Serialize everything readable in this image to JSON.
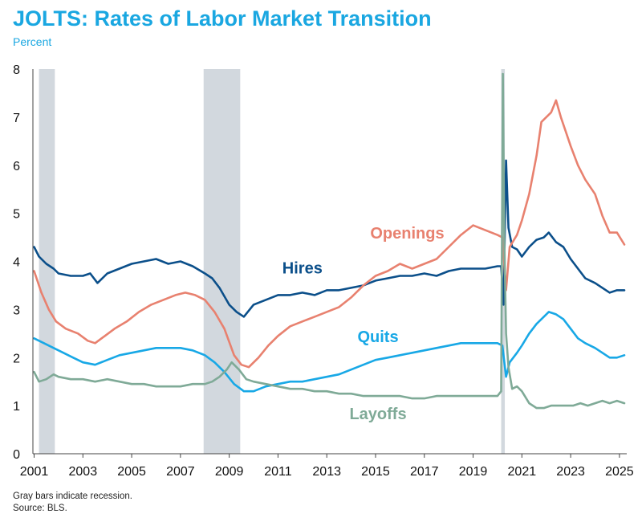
{
  "page": {
    "title": "JOLTS: Rates of Labor Market Transition",
    "subtitle": "Percent",
    "note": "Gray bars indicate recession.",
    "source": "Source: BLS."
  },
  "chart_data": {
    "type": "line",
    "title": "JOLTS: Rates of Labor Market Transition",
    "ylabel": "Percent",
    "xlim": [
      2000.95,
      2025.3
    ],
    "ylim": [
      0,
      8
    ],
    "yticks": [
      0,
      1,
      2,
      3,
      4,
      5,
      6,
      7,
      8
    ],
    "xticks": [
      2001,
      2003,
      2005,
      2007,
      2009,
      2011,
      2013,
      2015,
      2017,
      2019,
      2021,
      2023,
      2025
    ],
    "recessions": [
      [
        2001.2,
        2001.85
      ],
      [
        2007.95,
        2009.45
      ],
      [
        2020.15,
        2020.3
      ]
    ],
    "series": [
      {
        "name": "Hires",
        "color": "#0B4F8A",
        "label_year": 2012.0,
        "label_value": 3.75,
        "x": [
          2001.0,
          2001.2,
          2001.5,
          2001.8,
          2002.0,
          2002.5,
          2003.0,
          2003.3,
          2003.6,
          2004.0,
          2004.5,
          2005.0,
          2005.5,
          2006.0,
          2006.5,
          2007.0,
          2007.5,
          2008.0,
          2008.3,
          2008.6,
          2009.0,
          2009.3,
          2009.6,
          2010.0,
          2010.5,
          2011.0,
          2011.5,
          2012.0,
          2012.5,
          2013.0,
          2013.5,
          2014.0,
          2014.5,
          2015.0,
          2015.5,
          2016.0,
          2016.5,
          2017.0,
          2017.5,
          2018.0,
          2018.5,
          2019.0,
          2019.5,
          2020.0,
          2020.15,
          2020.25,
          2020.35,
          2020.45,
          2020.6,
          2020.8,
          2021.0,
          2021.3,
          2021.6,
          2021.9,
          2022.1,
          2022.4,
          2022.7,
          2023.0,
          2023.3,
          2023.6,
          2024.0,
          2024.3,
          2024.6,
          2024.9,
          2025.2
        ],
        "values": [
          4.3,
          4.1,
          3.95,
          3.85,
          3.75,
          3.7,
          3.7,
          3.75,
          3.55,
          3.75,
          3.85,
          3.95,
          4.0,
          4.05,
          3.95,
          4.0,
          3.9,
          3.75,
          3.65,
          3.45,
          3.1,
          2.95,
          2.85,
          3.1,
          3.2,
          3.3,
          3.3,
          3.35,
          3.3,
          3.4,
          3.4,
          3.45,
          3.5,
          3.6,
          3.65,
          3.7,
          3.7,
          3.75,
          3.7,
          3.8,
          3.85,
          3.85,
          3.85,
          3.9,
          3.9,
          3.1,
          6.1,
          4.7,
          4.3,
          4.25,
          4.1,
          4.3,
          4.45,
          4.5,
          4.6,
          4.4,
          4.3,
          4.05,
          3.85,
          3.65,
          3.55,
          3.45,
          3.35,
          3.4,
          3.4
        ]
      },
      {
        "name": "Openings",
        "color": "#E8816F",
        "label_year": 2016.3,
        "label_value": 4.48,
        "x": [
          2001.0,
          2001.3,
          2001.6,
          2001.9,
          2002.3,
          2002.8,
          2003.2,
          2003.5,
          2003.9,
          2004.3,
          2004.8,
          2005.3,
          2005.8,
          2006.3,
          2006.8,
          2007.2,
          2007.6,
          2008.0,
          2008.4,
          2008.8,
          2009.2,
          2009.5,
          2009.8,
          2010.2,
          2010.6,
          2011.0,
          2011.5,
          2012.0,
          2012.5,
          2013.0,
          2013.5,
          2014.0,
          2014.5,
          2015.0,
          2015.5,
          2016.0,
          2016.5,
          2017.0,
          2017.5,
          2018.0,
          2018.5,
          2019.0,
          2019.5,
          2020.0,
          2020.2,
          2020.35,
          2020.5,
          2020.8,
          2021.0,
          2021.3,
          2021.6,
          2021.8,
          2022.0,
          2022.2,
          2022.4,
          2022.6,
          2022.8,
          2023.0,
          2023.3,
          2023.6,
          2024.0,
          2024.3,
          2024.6,
          2024.9,
          2025.2
        ],
        "values": [
          3.8,
          3.35,
          3.0,
          2.75,
          2.6,
          2.5,
          2.35,
          2.3,
          2.45,
          2.6,
          2.75,
          2.95,
          3.1,
          3.2,
          3.3,
          3.35,
          3.3,
          3.2,
          2.95,
          2.6,
          2.05,
          1.85,
          1.8,
          2.0,
          2.25,
          2.45,
          2.65,
          2.75,
          2.85,
          2.95,
          3.05,
          3.25,
          3.5,
          3.7,
          3.8,
          3.95,
          3.85,
          3.95,
          4.05,
          4.3,
          4.55,
          4.75,
          4.65,
          4.55,
          4.5,
          3.4,
          4.3,
          4.55,
          4.85,
          5.4,
          6.2,
          6.9,
          7.0,
          7.1,
          7.35,
          7.0,
          6.7,
          6.4,
          6.0,
          5.7,
          5.4,
          4.95,
          4.6,
          4.6,
          4.35
        ]
      },
      {
        "name": "Quits",
        "color": "#18A8E6",
        "label_year": 2015.1,
        "label_value": 2.32,
        "x": [
          2001.0,
          2001.4,
          2001.8,
          2002.2,
          2002.6,
          2003.0,
          2003.5,
          2004.0,
          2004.5,
          2005.0,
          2005.5,
          2006.0,
          2006.5,
          2007.0,
          2007.5,
          2008.0,
          2008.4,
          2008.8,
          2009.2,
          2009.6,
          2010.0,
          2010.5,
          2011.0,
          2011.5,
          2012.0,
          2012.5,
          2013.0,
          2013.5,
          2014.0,
          2014.5,
          2015.0,
          2015.5,
          2016.0,
          2016.5,
          2017.0,
          2017.5,
          2018.0,
          2018.5,
          2019.0,
          2019.5,
          2020.0,
          2020.2,
          2020.35,
          2020.5,
          2020.8,
          2021.0,
          2021.3,
          2021.6,
          2021.9,
          2022.1,
          2022.4,
          2022.7,
          2023.0,
          2023.3,
          2023.6,
          2024.0,
          2024.3,
          2024.6,
          2024.9,
          2025.2
        ],
        "values": [
          2.4,
          2.3,
          2.2,
          2.1,
          2.0,
          1.9,
          1.85,
          1.95,
          2.05,
          2.1,
          2.15,
          2.2,
          2.2,
          2.2,
          2.15,
          2.05,
          1.9,
          1.7,
          1.45,
          1.3,
          1.3,
          1.4,
          1.45,
          1.5,
          1.5,
          1.55,
          1.6,
          1.65,
          1.75,
          1.85,
          1.95,
          2.0,
          2.05,
          2.1,
          2.15,
          2.2,
          2.25,
          2.3,
          2.3,
          2.3,
          2.3,
          2.25,
          1.6,
          1.9,
          2.1,
          2.25,
          2.5,
          2.7,
          2.85,
          2.95,
          2.9,
          2.8,
          2.6,
          2.4,
          2.3,
          2.2,
          2.1,
          2.0,
          2.0,
          2.05
        ]
      },
      {
        "name": "Layoffs",
        "color": "#7FAA97",
        "label_year": 2015.1,
        "label_value": 0.72,
        "x": [
          2001.0,
          2001.2,
          2001.5,
          2001.8,
          2002.0,
          2002.5,
          2003.0,
          2003.5,
          2004.0,
          2004.5,
          2005.0,
          2005.5,
          2006.0,
          2006.5,
          2007.0,
          2007.5,
          2008.0,
          2008.3,
          2008.6,
          2008.9,
          2009.1,
          2009.4,
          2009.7,
          2010.0,
          2010.5,
          2011.0,
          2011.5,
          2012.0,
          2012.5,
          2013.0,
          2013.5,
          2014.0,
          2014.5,
          2015.0,
          2015.5,
          2016.0,
          2016.5,
          2017.0,
          2017.5,
          2018.0,
          2018.5,
          2019.0,
          2019.5,
          2020.0,
          2020.15,
          2020.22,
          2020.28,
          2020.35,
          2020.45,
          2020.6,
          2020.8,
          2021.0,
          2021.3,
          2021.6,
          2021.9,
          2022.2,
          2022.5,
          2022.8,
          2023.1,
          2023.4,
          2023.7,
          2024.0,
          2024.3,
          2024.6,
          2024.9,
          2025.2
        ],
        "values": [
          1.7,
          1.5,
          1.55,
          1.65,
          1.6,
          1.55,
          1.55,
          1.5,
          1.55,
          1.5,
          1.45,
          1.45,
          1.4,
          1.4,
          1.4,
          1.45,
          1.45,
          1.5,
          1.6,
          1.75,
          1.9,
          1.75,
          1.55,
          1.5,
          1.45,
          1.4,
          1.35,
          1.35,
          1.3,
          1.3,
          1.25,
          1.25,
          1.2,
          1.2,
          1.2,
          1.2,
          1.15,
          1.15,
          1.2,
          1.2,
          1.2,
          1.2,
          1.2,
          1.2,
          1.3,
          7.9,
          4.5,
          2.5,
          1.8,
          1.35,
          1.4,
          1.3,
          1.05,
          0.95,
          0.95,
          1.0,
          1.0,
          1.0,
          1.0,
          1.05,
          1.0,
          1.05,
          1.1,
          1.05,
          1.1,
          1.05
        ]
      }
    ]
  }
}
